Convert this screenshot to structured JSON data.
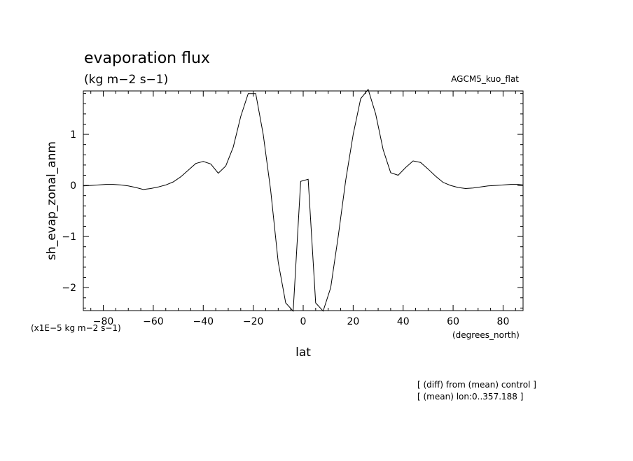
{
  "chart_data": {
    "type": "line",
    "title": "evaporation flux",
    "units": "(kg m−2 s−1)",
    "run_label": "AGCM5_kuo_flat",
    "xlabel": "lat",
    "x_units": "(degrees_north)",
    "ylabel": "sh_evap_zonal_anm",
    "y_scale_note": "(x1E−5 kg m−2 s−1)",
    "xlim": [
      -88,
      88
    ],
    "ylim": [
      -2.45,
      1.85
    ],
    "x_ticks": [
      -80,
      -60,
      -40,
      -20,
      0,
      20,
      40,
      60,
      80
    ],
    "x_tick_labels": [
      "−80",
      "−60",
      "−40",
      "−20",
      "0",
      "20",
      "40",
      "60",
      "80"
    ],
    "y_ticks": [
      -2,
      -1,
      0,
      1
    ],
    "y_tick_labels": [
      "−2",
      "−1",
      "0",
      "1"
    ],
    "grid": false,
    "notes": [
      "[ (diff) from (mean) control ]",
      "[ (mean) lon:0..357.188 ]"
    ],
    "x": [
      -88,
      -85,
      -82,
      -79,
      -76,
      -73,
      -70,
      -67,
      -64,
      -61,
      -58,
      -55,
      -52,
      -49,
      -46,
      -43,
      -40,
      -37,
      -34,
      -31,
      -28,
      -25,
      -22,
      -19,
      -16,
      -13,
      -10,
      -7,
      -4,
      -1,
      2,
      5,
      8,
      11,
      14,
      17,
      20,
      23,
      26,
      29,
      32,
      35,
      38,
      41,
      44,
      47,
      50,
      53,
      56,
      59,
      62,
      65,
      68,
      71,
      74,
      77,
      80,
      83,
      86,
      88
    ],
    "values": [
      -0.01,
      0.0,
      0.01,
      0.02,
      0.02,
      0.01,
      -0.01,
      -0.04,
      -0.08,
      -0.06,
      -0.03,
      0.01,
      0.07,
      0.17,
      0.3,
      0.43,
      0.47,
      0.42,
      0.24,
      0.38,
      0.75,
      1.35,
      1.8,
      1.8,
      1.0,
      -0.1,
      -1.5,
      -2.3,
      -2.46,
      0.08,
      0.12,
      -2.3,
      -2.46,
      -2.0,
      -1.0,
      0.1,
      1.0,
      1.7,
      1.88,
      1.4,
      0.7,
      0.25,
      0.2,
      0.35,
      0.48,
      0.45,
      0.32,
      0.18,
      0.06,
      0.0,
      -0.04,
      -0.06,
      -0.05,
      -0.03,
      -0.01,
      0.0,
      0.01,
      0.02,
      0.02,
      0.01
    ]
  }
}
